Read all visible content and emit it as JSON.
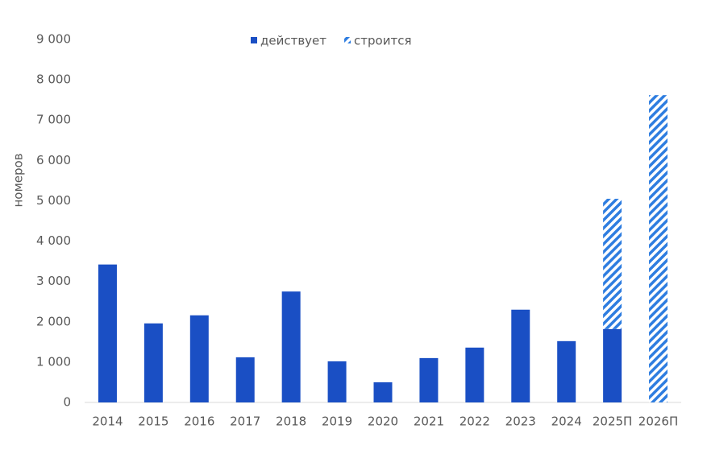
{
  "chart_data": {
    "type": "stacked_bar",
    "y_label": "номеров",
    "categories": [
      "2014",
      "2015",
      "2016",
      "2017",
      "2018",
      "2019",
      "2020",
      "2021",
      "2022",
      "2023",
      "2024",
      "2025П",
      "2026П"
    ],
    "series": [
      {
        "name": "действует",
        "color": "#1a4fc4",
        "hatch": false,
        "values": [
          3420,
          1960,
          2160,
          1120,
          2750,
          1020,
          500,
          1100,
          1360,
          2300,
          1520,
          1820,
          0
        ]
      },
      {
        "name": "строится",
        "color": "#2e7de0",
        "hatch": true,
        "values": [
          0,
          0,
          0,
          0,
          0,
          0,
          0,
          0,
          0,
          0,
          0,
          3230,
          7620
        ]
      }
    ],
    "ylim": [
      0,
      9000
    ],
    "yticks": [
      {
        "value": 0,
        "label": "0"
      },
      {
        "value": 1000,
        "label": "1 000"
      },
      {
        "value": 2000,
        "label": "2 000"
      },
      {
        "value": 3000,
        "label": "3 000"
      },
      {
        "value": 4000,
        "label": "4 000"
      },
      {
        "value": 5000,
        "label": "5 000"
      },
      {
        "value": 6000,
        "label": "6 000"
      },
      {
        "value": 7000,
        "label": "7 000"
      },
      {
        "value": 8000,
        "label": "8 000"
      },
      {
        "value": 9000,
        "label": "9 000"
      }
    ],
    "grid": false,
    "legend": "top"
  }
}
